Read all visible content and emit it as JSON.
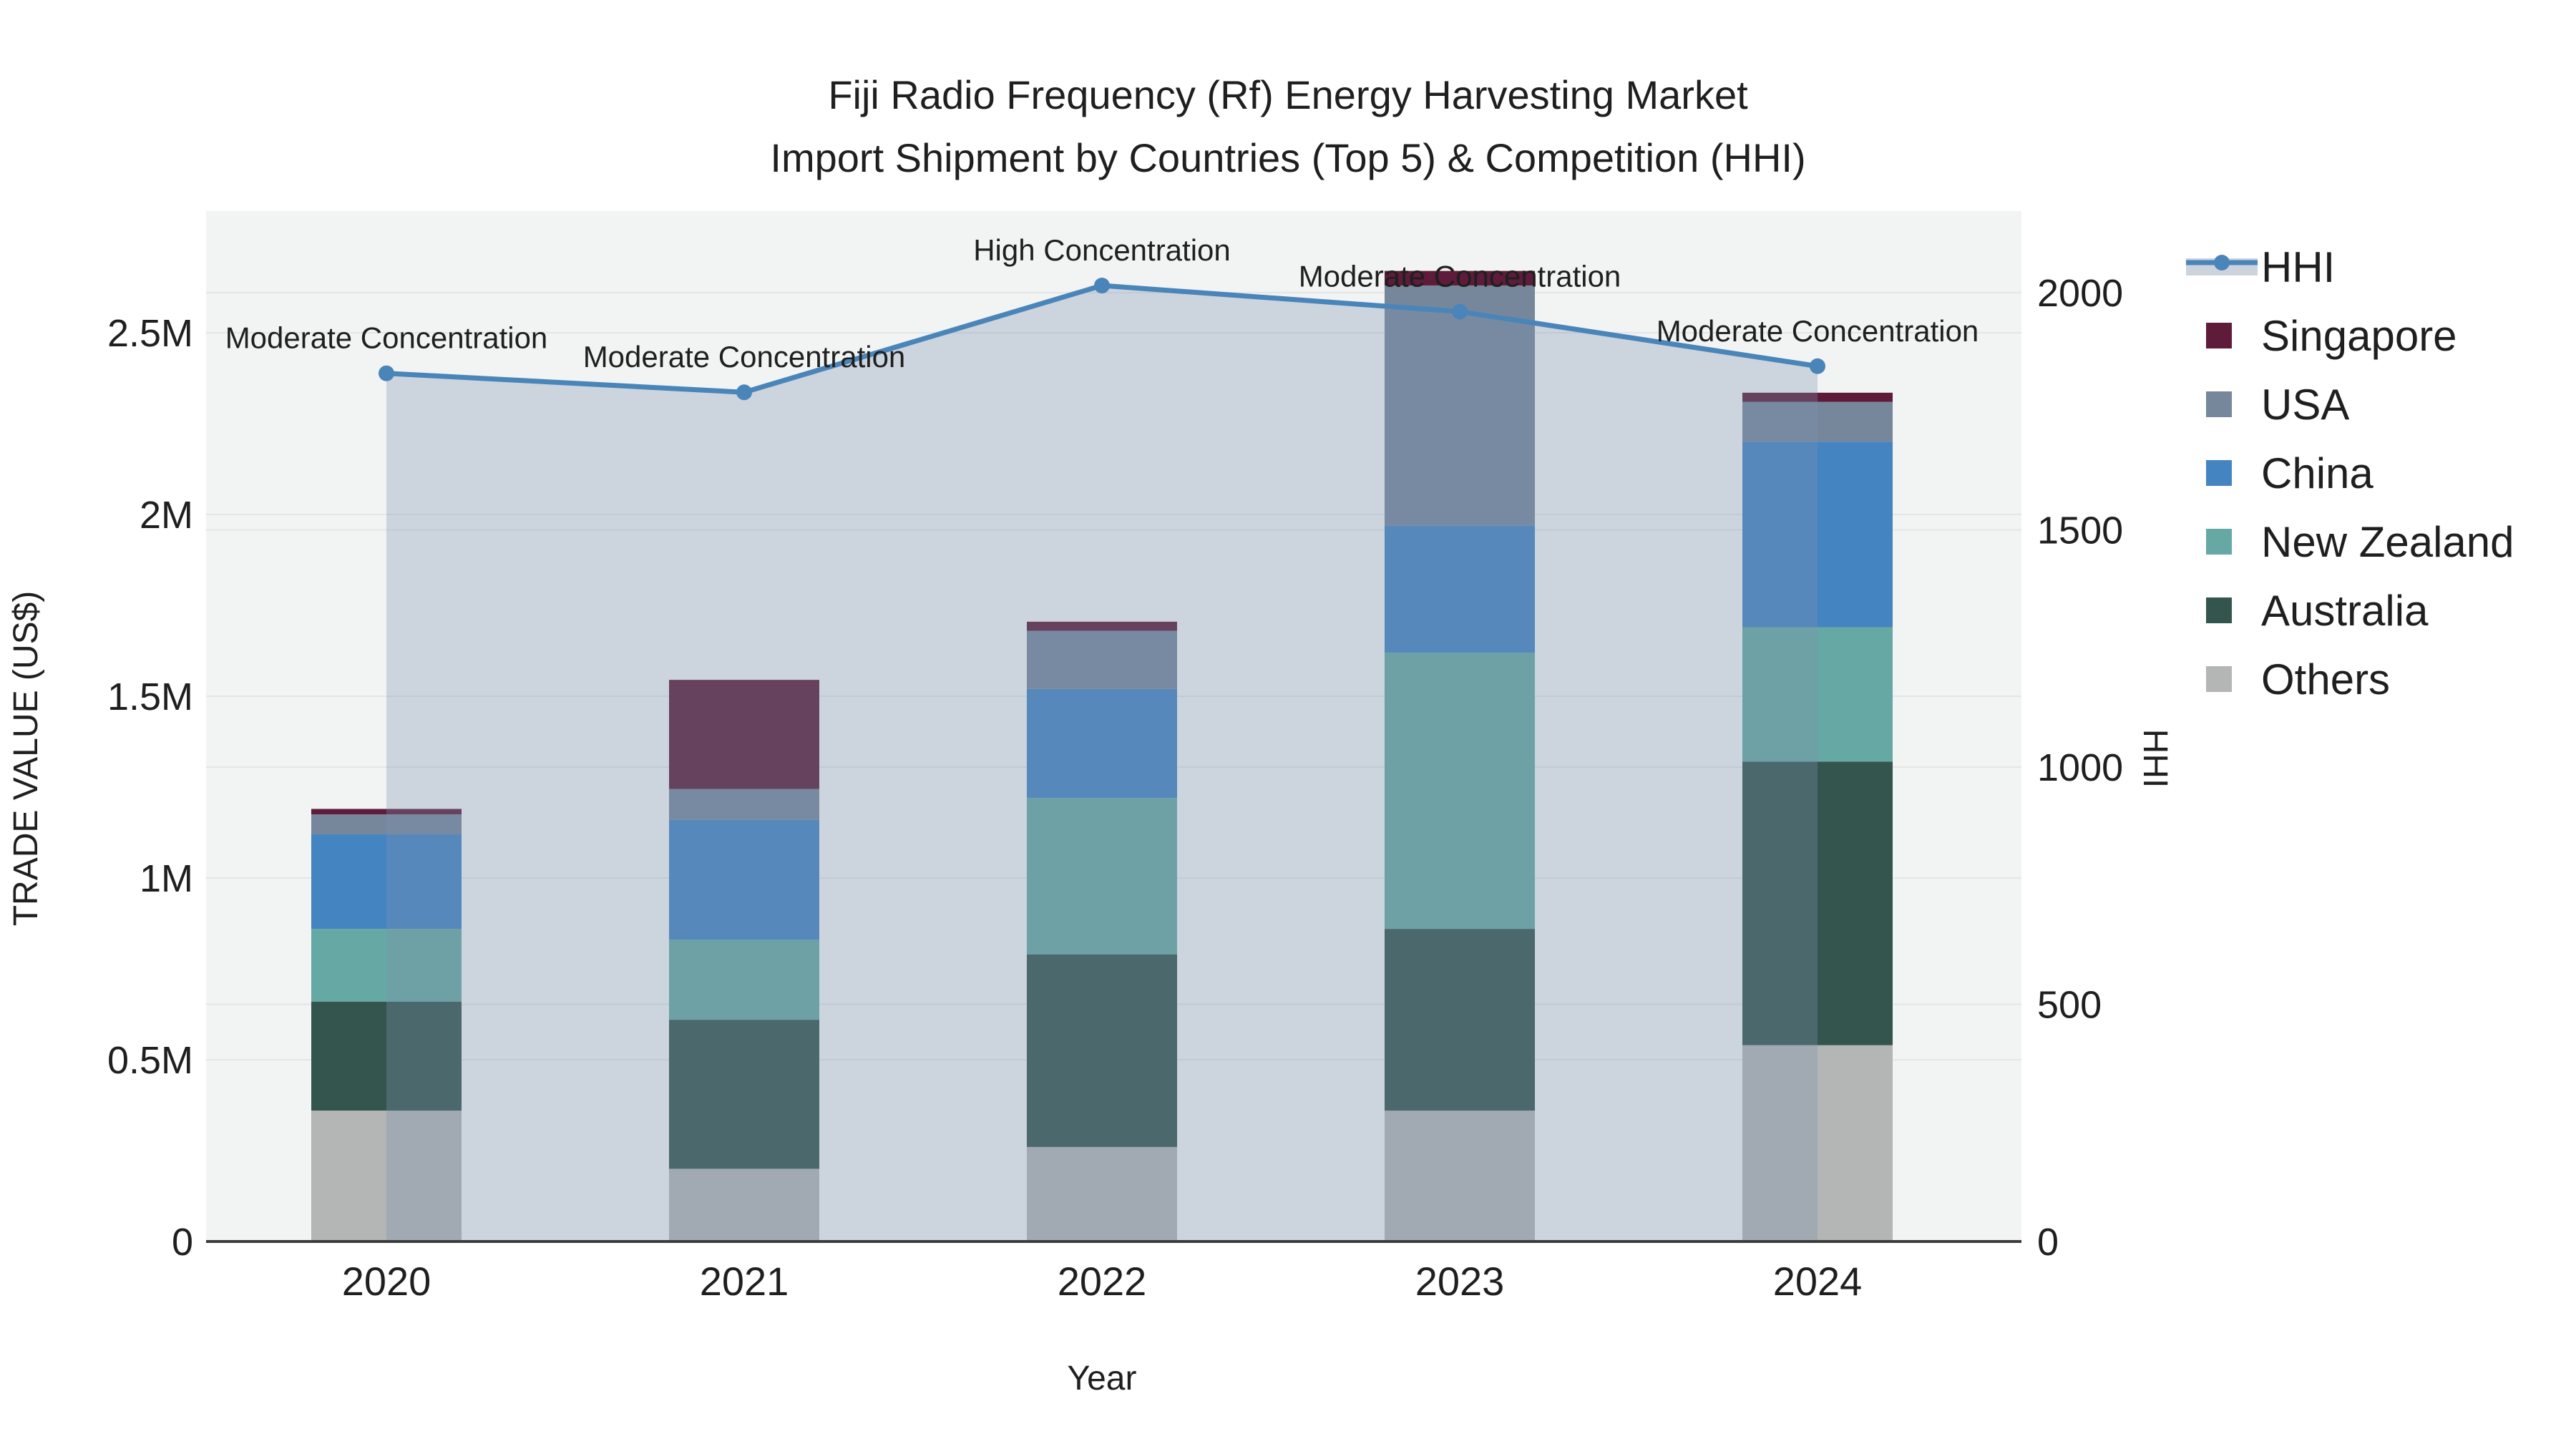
{
  "title": {
    "line1": "Fiji Radio Frequency (Rf) Energy Harvesting Market",
    "line2": "Import Shipment by Countries (Top 5) & Competition (HHI)"
  },
  "axes": {
    "y_left_title": "TRADE VALUE (US$)",
    "y_right_title": "HHI",
    "x_title": "Year",
    "y_left_ticks": [
      {
        "label": "0",
        "value": 0
      },
      {
        "label": "0.5M",
        "value": 0.5
      },
      {
        "label": "1M",
        "value": 1
      },
      {
        "label": "1.5M",
        "value": 1.5
      },
      {
        "label": "2M",
        "value": 2
      },
      {
        "label": "2.5M",
        "value": 2.5
      }
    ],
    "y_right_ticks": [
      {
        "label": "0",
        "value": 0
      },
      {
        "label": "500",
        "value": 500
      },
      {
        "label": "1000",
        "value": 1000
      },
      {
        "label": "1500",
        "value": 1500
      },
      {
        "label": "2000",
        "value": 2000
      }
    ]
  },
  "legend": {
    "entries": [
      {
        "key": "hhi",
        "label": "HHI"
      },
      {
        "key": "singapore",
        "label": "Singapore"
      },
      {
        "key": "usa",
        "label": "USA"
      },
      {
        "key": "china",
        "label": "China"
      },
      {
        "key": "new_zealand",
        "label": "New Zealand"
      },
      {
        "key": "australia",
        "label": "Australia"
      },
      {
        "key": "others",
        "label": "Others"
      }
    ]
  },
  "colors": {
    "singapore": "#5E1C3A",
    "usa": "#76879B",
    "china": "#4484C1",
    "new_zealand": "#66A8A3",
    "australia": "#34554E",
    "others": "#B3B6B5",
    "hhi": "#4A85BA",
    "area_fill": "rgba(125,145,175,0.32)",
    "plot_bg": "#F2F3F3",
    "grid": "#E3E5E7",
    "axis_line": "#3C3C3C",
    "annotation_text": "#111111"
  },
  "chart_data": {
    "type": [
      "bar",
      "line"
    ],
    "title": "Fiji Radio Frequency (Rf) Energy Harvesting Market Import Shipment by Countries (Top 5) & Competition (HHI)",
    "xlabel": "Year",
    "ylabel_left": "TRADE VALUE (US$)",
    "ylabel_right": "HHI",
    "categories": [
      "2020",
      "2021",
      "2022",
      "2023",
      "2024"
    ],
    "units": "US$ millions (left axis), HHI index (right axis)",
    "ylim_left_millions": [
      0,
      2.8
    ],
    "ylim_right_hhi": [
      0,
      2170
    ],
    "grid": true,
    "legend_position": "right",
    "stack_order_bottom_to_top": [
      "Others",
      "Australia",
      "New Zealand",
      "China",
      "USA",
      "Singapore"
    ],
    "series": [
      {
        "key": "others",
        "name": "Others",
        "values": [
          0.36,
          0.2,
          0.26,
          0.36,
          0.54
        ]
      },
      {
        "key": "australia",
        "name": "Australia",
        "values": [
          0.3,
          0.41,
          0.53,
          0.5,
          0.78
        ]
      },
      {
        "key": "new_zealand",
        "name": "New Zealand",
        "values": [
          0.2,
          0.22,
          0.43,
          0.76,
          0.37
        ]
      },
      {
        "key": "china",
        "name": "China",
        "values": [
          0.26,
          0.33,
          0.3,
          0.35,
          0.51
        ]
      },
      {
        "key": "usa",
        "name": "USA",
        "values": [
          0.055,
          0.085,
          0.16,
          0.66,
          0.11
        ]
      },
      {
        "key": "singapore",
        "name": "Singapore",
        "values": [
          0.015,
          0.3,
          0.025,
          0.04,
          0.025
        ]
      }
    ],
    "bar_totals_millions": [
      1.19,
      1.545,
      1.705,
      2.67,
      2.335
    ],
    "hhi_line": {
      "name": "HHI",
      "values": [
        1830,
        1790,
        2015,
        1960,
        1845
      ]
    },
    "annotations": [
      "Moderate Concentration",
      "Moderate Concentration",
      "High Concentration",
      "Moderate Concentration",
      "Moderate Concentration"
    ]
  }
}
